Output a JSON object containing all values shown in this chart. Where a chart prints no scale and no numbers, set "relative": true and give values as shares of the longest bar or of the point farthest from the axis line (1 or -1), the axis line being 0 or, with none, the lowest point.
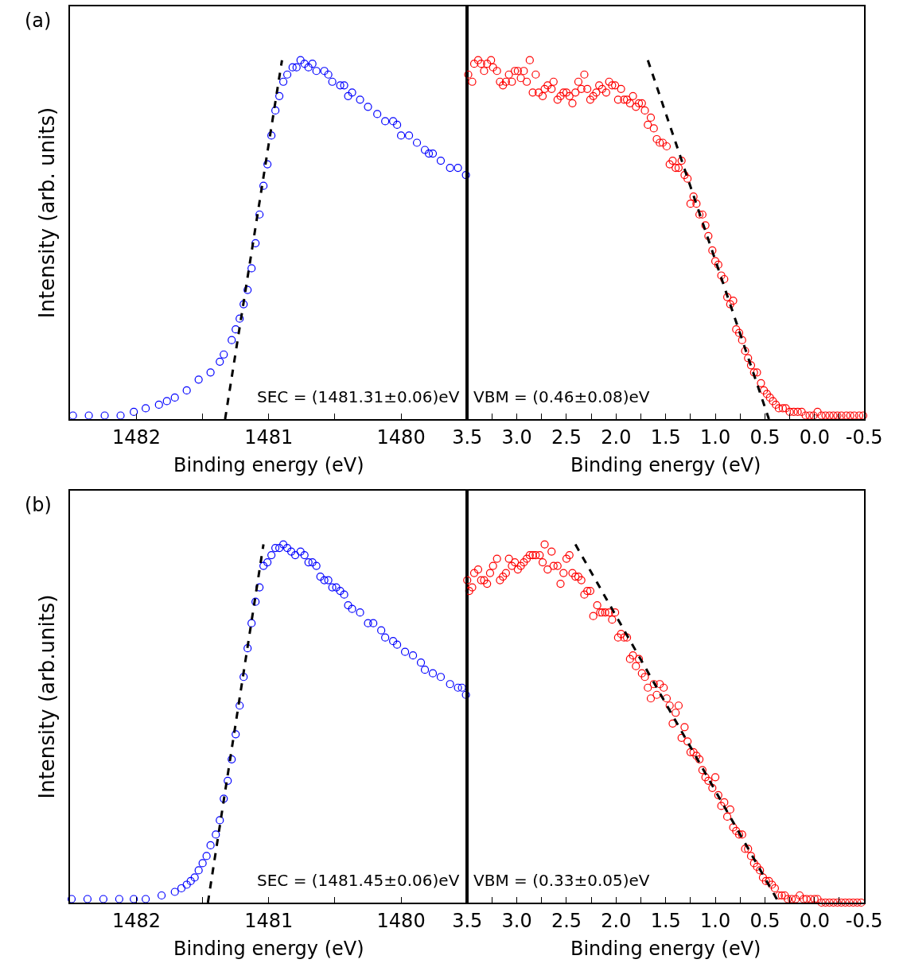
{
  "chart_data": [
    {
      "type": "scatter",
      "relative": true,
      "tick_labels": "x",
      "xlabel": "Binding energy (eV)",
      "ylabel": "Intensity (arb. units)",
      "annotations": [
        "(a)",
        "SEC = (1481.31±0.06)eV"
      ],
      "xlim": [
        1482.5,
        1479.5
      ],
      "xticks": [
        {
          "value": 1482,
          "label": "1482"
        },
        {
          "value": 1481.5,
          "label": null
        },
        {
          "value": 1481,
          "label": "1481"
        },
        {
          "value": 1480.5,
          "label": null
        },
        {
          "value": 1480,
          "label": "1480"
        }
      ],
      "series": [
        {
          "marker": "circle",
          "color": "#0000ff",
          "x": [
            1482.48,
            1482.36,
            1482.24,
            1482.12,
            1482.02,
            1481.93,
            1481.83,
            1481.77,
            1481.71,
            1481.62,
            1481.53,
            1481.44,
            1481.37,
            1481.34,
            1481.28,
            1481.25,
            1481.22,
            1481.19,
            1481.16,
            1481.13,
            1481.1,
            1481.07,
            1481.04,
            1481.01,
            1480.98,
            1480.95,
            1480.92,
            1480.89,
            1480.86,
            1480.82,
            1480.79,
            1480.76,
            1480.73,
            1480.7,
            1480.67,
            1480.64,
            1480.58,
            1480.55,
            1480.52,
            1480.46,
            1480.43,
            1480.4,
            1480.37,
            1480.31,
            1480.25,
            1480.18,
            1480.12,
            1480.06,
            1480.03,
            1480.0,
            1479.94,
            1479.88,
            1479.82,
            1479.79,
            1479.76,
            1479.7,
            1479.63,
            1479.57,
            1479.51
          ],
          "values": [
            0.01,
            0.01,
            0.01,
            0.01,
            0.02,
            0.03,
            0.04,
            0.05,
            0.06,
            0.08,
            0.11,
            0.13,
            0.16,
            0.18,
            0.22,
            0.25,
            0.28,
            0.32,
            0.36,
            0.42,
            0.49,
            0.57,
            0.65,
            0.71,
            0.79,
            0.86,
            0.9,
            0.94,
            0.96,
            0.98,
            0.98,
            1.0,
            0.99,
            0.98,
            0.99,
            0.97,
            0.97,
            0.96,
            0.94,
            0.93,
            0.93,
            0.9,
            0.91,
            0.89,
            0.87,
            0.85,
            0.83,
            0.83,
            0.82,
            0.79,
            0.79,
            0.77,
            0.75,
            0.74,
            0.74,
            0.72,
            0.7,
            0.7,
            0.68
          ]
        },
        {
          "type": "line",
          "marker": "none",
          "line_style": "dashed",
          "color": "#000000",
          "x": [
            1481.33,
            1480.9
          ],
          "values": [
            0,
            1.0
          ]
        }
      ]
    },
    {
      "type": "scatter",
      "relative": true,
      "tick_labels": "x",
      "xlabel": "Binding energy (eV)",
      "annotations": [
        "VBM = (0.46±0.08)eV"
      ],
      "xlim": [
        3.5,
        -0.5
      ],
      "xticks": [
        {
          "value": 3.5,
          "label": "3.5"
        },
        {
          "value": 3.25,
          "label": null
        },
        {
          "value": 3.0,
          "label": "3.0"
        },
        {
          "value": 2.75,
          "label": null
        },
        {
          "value": 2.5,
          "label": "2.5"
        },
        {
          "value": 2.25,
          "label": null
        },
        {
          "value": 2.0,
          "label": "2.0"
        },
        {
          "value": 1.75,
          "label": null
        },
        {
          "value": 1.5,
          "label": "1.5"
        },
        {
          "value": 1.25,
          "label": null
        },
        {
          "value": 1.0,
          "label": "1.0"
        },
        {
          "value": 0.75,
          "label": null
        },
        {
          "value": 0.5,
          "label": "0.5"
        },
        {
          "value": 0.25,
          "label": null
        },
        {
          "value": 0.0,
          "label": "0.0"
        },
        {
          "value": -0.25,
          "label": null
        },
        {
          "value": -0.5,
          "label": "-0.5"
        }
      ],
      "series": [
        {
          "marker": "circle",
          "color": "#ff0000",
          "x": [
            3.49,
            3.45,
            3.43,
            3.39,
            3.36,
            3.33,
            3.3,
            3.26,
            3.24,
            3.2,
            3.17,
            3.14,
            3.11,
            3.08,
            3.05,
            3.02,
            2.99,
            2.96,
            2.93,
            2.9,
            2.87,
            2.84,
            2.81,
            2.78,
            2.74,
            2.72,
            2.69,
            2.65,
            2.63,
            2.59,
            2.56,
            2.53,
            2.5,
            2.47,
            2.44,
            2.41,
            2.38,
            2.35,
            2.32,
            2.29,
            2.26,
            2.23,
            2.2,
            2.17,
            2.14,
            2.1,
            2.07,
            2.04,
            2.01,
            1.98,
            1.95,
            1.92,
            1.89,
            1.86,
            1.83,
            1.8,
            1.77,
            1.74,
            1.71,
            1.68,
            1.65,
            1.62,
            1.59,
            1.56,
            1.53,
            1.49,
            1.46,
            1.43,
            1.4,
            1.37,
            1.34,
            1.31,
            1.28,
            1.25,
            1.22,
            1.19,
            1.16,
            1.13,
            1.1,
            1.07,
            1.03,
            1.0,
            0.97,
            0.94,
            0.91,
            0.88,
            0.85,
            0.82,
            0.79,
            0.76,
            0.73,
            0.7,
            0.67,
            0.64,
            0.61,
            0.58,
            0.54,
            0.51,
            0.48,
            0.45,
            0.42,
            0.39,
            0.36,
            0.32,
            0.29,
            0.25,
            0.21,
            0.17,
            0.13,
            0.09,
            0.05,
            0.01,
            -0.03,
            -0.07,
            -0.11,
            -0.15,
            -0.19,
            -0.23,
            -0.27,
            -0.32,
            -0.36,
            -0.4,
            -0.45,
            -0.49
          ],
          "values": [
            0.96,
            0.94,
            0.99,
            1.0,
            0.99,
            0.97,
            0.99,
            1.0,
            0.98,
            0.97,
            0.94,
            0.93,
            0.94,
            0.96,
            0.94,
            0.97,
            0.97,
            0.95,
            0.97,
            0.94,
            1.0,
            0.91,
            0.96,
            0.91,
            0.9,
            0.92,
            0.93,
            0.92,
            0.94,
            0.89,
            0.9,
            0.91,
            0.91,
            0.9,
            0.88,
            0.91,
            0.94,
            0.92,
            0.96,
            0.92,
            0.89,
            0.9,
            0.91,
            0.93,
            0.92,
            0.91,
            0.94,
            0.93,
            0.93,
            0.89,
            0.92,
            0.89,
            0.89,
            0.88,
            0.9,
            0.87,
            0.88,
            0.88,
            0.86,
            0.82,
            0.84,
            0.81,
            0.78,
            0.77,
            0.77,
            0.76,
            0.71,
            0.72,
            0.7,
            0.7,
            0.72,
            0.68,
            0.67,
            0.6,
            0.62,
            0.6,
            0.57,
            0.57,
            0.54,
            0.51,
            0.47,
            0.44,
            0.43,
            0.4,
            0.39,
            0.34,
            0.32,
            0.33,
            0.25,
            0.24,
            0.22,
            0.19,
            0.17,
            0.15,
            0.13,
            0.13,
            0.1,
            0.08,
            0.07,
            0.06,
            0.05,
            0.04,
            0.03,
            0.03,
            0.03,
            0.02,
            0.02,
            0.02,
            0.02,
            0.01,
            0.01,
            0.01,
            0.02,
            0.01,
            0.01,
            0.01,
            0.01,
            0.01,
            0.01,
            0.01,
            0.01,
            0.01,
            0.01,
            0.01
          ]
        },
        {
          "type": "line",
          "marker": "none",
          "line_style": "dashed",
          "color": "#000000",
          "x": [
            1.68,
            0.46
          ],
          "values": [
            1.0,
            0
          ]
        }
      ]
    },
    {
      "type": "scatter",
      "relative": true,
      "tick_labels": "x",
      "xlabel": "Binding energy (eV)",
      "ylabel": "Intensity (arb.units)",
      "annotations": [
        "(b)",
        "SEC = (1481.45±0.06)eV"
      ],
      "xlim": [
        1482.5,
        1479.5
      ],
      "xticks": [
        {
          "value": 1482,
          "label": "1482"
        },
        {
          "value": 1481.5,
          "label": null
        },
        {
          "value": 1481,
          "label": "1481"
        },
        {
          "value": 1480.5,
          "label": null
        },
        {
          "value": 1480,
          "label": "1480"
        }
      ],
      "series": [
        {
          "marker": "circle",
          "color": "#0000ff",
          "x": [
            1482.49,
            1482.37,
            1482.25,
            1482.13,
            1482.02,
            1481.93,
            1481.81,
            1481.71,
            1481.66,
            1481.62,
            1481.59,
            1481.56,
            1481.53,
            1481.5,
            1481.47,
            1481.44,
            1481.4,
            1481.37,
            1481.34,
            1481.31,
            1481.28,
            1481.25,
            1481.22,
            1481.19,
            1481.16,
            1481.13,
            1481.1,
            1481.07,
            1481.04,
            1481.01,
            1480.98,
            1480.95,
            1480.92,
            1480.89,
            1480.86,
            1480.83,
            1480.8,
            1480.76,
            1480.73,
            1480.7,
            1480.67,
            1480.64,
            1480.61,
            1480.58,
            1480.55,
            1480.52,
            1480.49,
            1480.46,
            1480.43,
            1480.4,
            1480.37,
            1480.31,
            1480.25,
            1480.21,
            1480.15,
            1480.12,
            1480.06,
            1480.03,
            1479.97,
            1479.91,
            1479.85,
            1479.82,
            1479.76,
            1479.7,
            1479.63,
            1479.57,
            1479.54,
            1479.51
          ],
          "values": [
            0.01,
            0.01,
            0.01,
            0.01,
            0.01,
            0.01,
            0.02,
            0.03,
            0.04,
            0.05,
            0.06,
            0.07,
            0.09,
            0.11,
            0.13,
            0.16,
            0.19,
            0.23,
            0.29,
            0.34,
            0.4,
            0.47,
            0.55,
            0.63,
            0.71,
            0.78,
            0.84,
            0.88,
            0.94,
            0.95,
            0.97,
            0.99,
            0.99,
            1.0,
            0.99,
            0.98,
            0.97,
            0.98,
            0.97,
            0.95,
            0.95,
            0.94,
            0.91,
            0.9,
            0.9,
            0.88,
            0.88,
            0.87,
            0.86,
            0.83,
            0.82,
            0.81,
            0.78,
            0.78,
            0.76,
            0.74,
            0.73,
            0.72,
            0.7,
            0.69,
            0.67,
            0.65,
            0.64,
            0.63,
            0.61,
            0.6,
            0.6,
            0.58
          ]
        },
        {
          "type": "line",
          "marker": "none",
          "line_style": "dashed",
          "color": "#000000",
          "x": [
            1481.46,
            1481.04
          ],
          "values": [
            0,
            1.0
          ]
        }
      ]
    },
    {
      "type": "scatter",
      "relative": true,
      "tick_labels": "x",
      "xlabel": "Binding energy (eV)",
      "annotations": [
        "VBM = (0.33±0.05)eV"
      ],
      "xlim": [
        3.5,
        -0.5
      ],
      "xticks": [
        {
          "value": 3.5,
          "label": "3.5"
        },
        {
          "value": 3.25,
          "label": null
        },
        {
          "value": 3.0,
          "label": "3.0"
        },
        {
          "value": 2.75,
          "label": null
        },
        {
          "value": 2.5,
          "label": "2.5"
        },
        {
          "value": 2.25,
          "label": null
        },
        {
          "value": 2.0,
          "label": "2.0"
        },
        {
          "value": 1.75,
          "label": null
        },
        {
          "value": 1.5,
          "label": "1.5"
        },
        {
          "value": 1.25,
          "label": null
        },
        {
          "value": 1.0,
          "label": "1.0"
        },
        {
          "value": 0.75,
          "label": null
        },
        {
          "value": 0.5,
          "label": "0.5"
        },
        {
          "value": 0.25,
          "label": null
        },
        {
          "value": 0.0,
          "label": "0.0"
        },
        {
          "value": -0.25,
          "label": null
        },
        {
          "value": -0.5,
          "label": "-0.5"
        }
      ],
      "series": [
        {
          "marker": "circle",
          "color": "#ff0000",
          "x": [
            3.5,
            3.48,
            3.45,
            3.43,
            3.39,
            3.36,
            3.33,
            3.3,
            3.27,
            3.24,
            3.2,
            3.17,
            3.14,
            3.11,
            3.08,
            3.05,
            3.02,
            2.99,
            2.96,
            2.93,
            2.9,
            2.87,
            2.84,
            2.81,
            2.77,
            2.74,
            2.72,
            2.69,
            2.65,
            2.63,
            2.59,
            2.56,
            2.53,
            2.5,
            2.47,
            2.44,
            2.41,
            2.38,
            2.35,
            2.32,
            2.29,
            2.26,
            2.23,
            2.19,
            2.16,
            2.14,
            2.11,
            2.07,
            2.04,
            2.01,
            1.98,
            1.95,
            1.92,
            1.89,
            1.86,
            1.83,
            1.8,
            1.77,
            1.74,
            1.71,
            1.68,
            1.65,
            1.62,
            1.59,
            1.56,
            1.52,
            1.49,
            1.46,
            1.43,
            1.4,
            1.37,
            1.34,
            1.31,
            1.28,
            1.25,
            1.22,
            1.19,
            1.16,
            1.13,
            1.1,
            1.07,
            1.03,
            1.0,
            0.97,
            0.94,
            0.91,
            0.88,
            0.85,
            0.82,
            0.79,
            0.76,
            0.73,
            0.7,
            0.67,
            0.64,
            0.61,
            0.58,
            0.55,
            0.52,
            0.49,
            0.46,
            0.43,
            0.4,
            0.36,
            0.33,
            0.3,
            0.27,
            0.23,
            0.19,
            0.15,
            0.11,
            0.08,
            0.04,
            0.0,
            -0.03,
            -0.07,
            -0.11,
            -0.15,
            -0.19,
            -0.23,
            -0.27,
            -0.31,
            -0.35,
            -0.39,
            -0.43,
            -0.47
          ],
          "values": [
            0.9,
            0.87,
            0.88,
            0.92,
            0.93,
            0.9,
            0.9,
            0.89,
            0.92,
            0.94,
            0.96,
            0.9,
            0.91,
            0.92,
            0.96,
            0.94,
            0.95,
            0.93,
            0.94,
            0.95,
            0.96,
            0.97,
            0.97,
            0.97,
            0.97,
            0.95,
            1.0,
            0.93,
            0.98,
            0.94,
            0.94,
            0.89,
            0.92,
            0.96,
            0.97,
            0.92,
            0.91,
            0.91,
            0.9,
            0.86,
            0.87,
            0.87,
            0.8,
            0.83,
            0.81,
            0.81,
            0.81,
            0.81,
            0.79,
            0.81,
            0.74,
            0.75,
            0.74,
            0.74,
            0.68,
            0.69,
            0.66,
            0.68,
            0.64,
            0.63,
            0.6,
            0.57,
            0.61,
            0.58,
            0.61,
            0.6,
            0.57,
            0.55,
            0.5,
            0.53,
            0.55,
            0.46,
            0.49,
            0.45,
            0.42,
            0.42,
            0.41,
            0.4,
            0.37,
            0.35,
            0.34,
            0.32,
            0.35,
            0.3,
            0.27,
            0.28,
            0.24,
            0.26,
            0.21,
            0.2,
            0.19,
            0.19,
            0.15,
            0.15,
            0.13,
            0.11,
            0.1,
            0.09,
            0.07,
            0.06,
            0.06,
            0.05,
            0.04,
            0.02,
            0.02,
            0.02,
            0.01,
            0.01,
            0.01,
            0.02,
            0.01,
            0.01,
            0.01,
            0.01,
            0.01,
            0.0,
            0.0,
            0.0,
            0.0,
            0.0,
            0.0,
            0.0,
            0.0,
            0.0,
            0.0,
            0.0
          ]
        },
        {
          "type": "line",
          "marker": "none",
          "line_style": "dashed",
          "color": "#000000",
          "x": [
            2.41,
            0.36
          ],
          "values": [
            1.0,
            0
          ]
        }
      ]
    }
  ]
}
